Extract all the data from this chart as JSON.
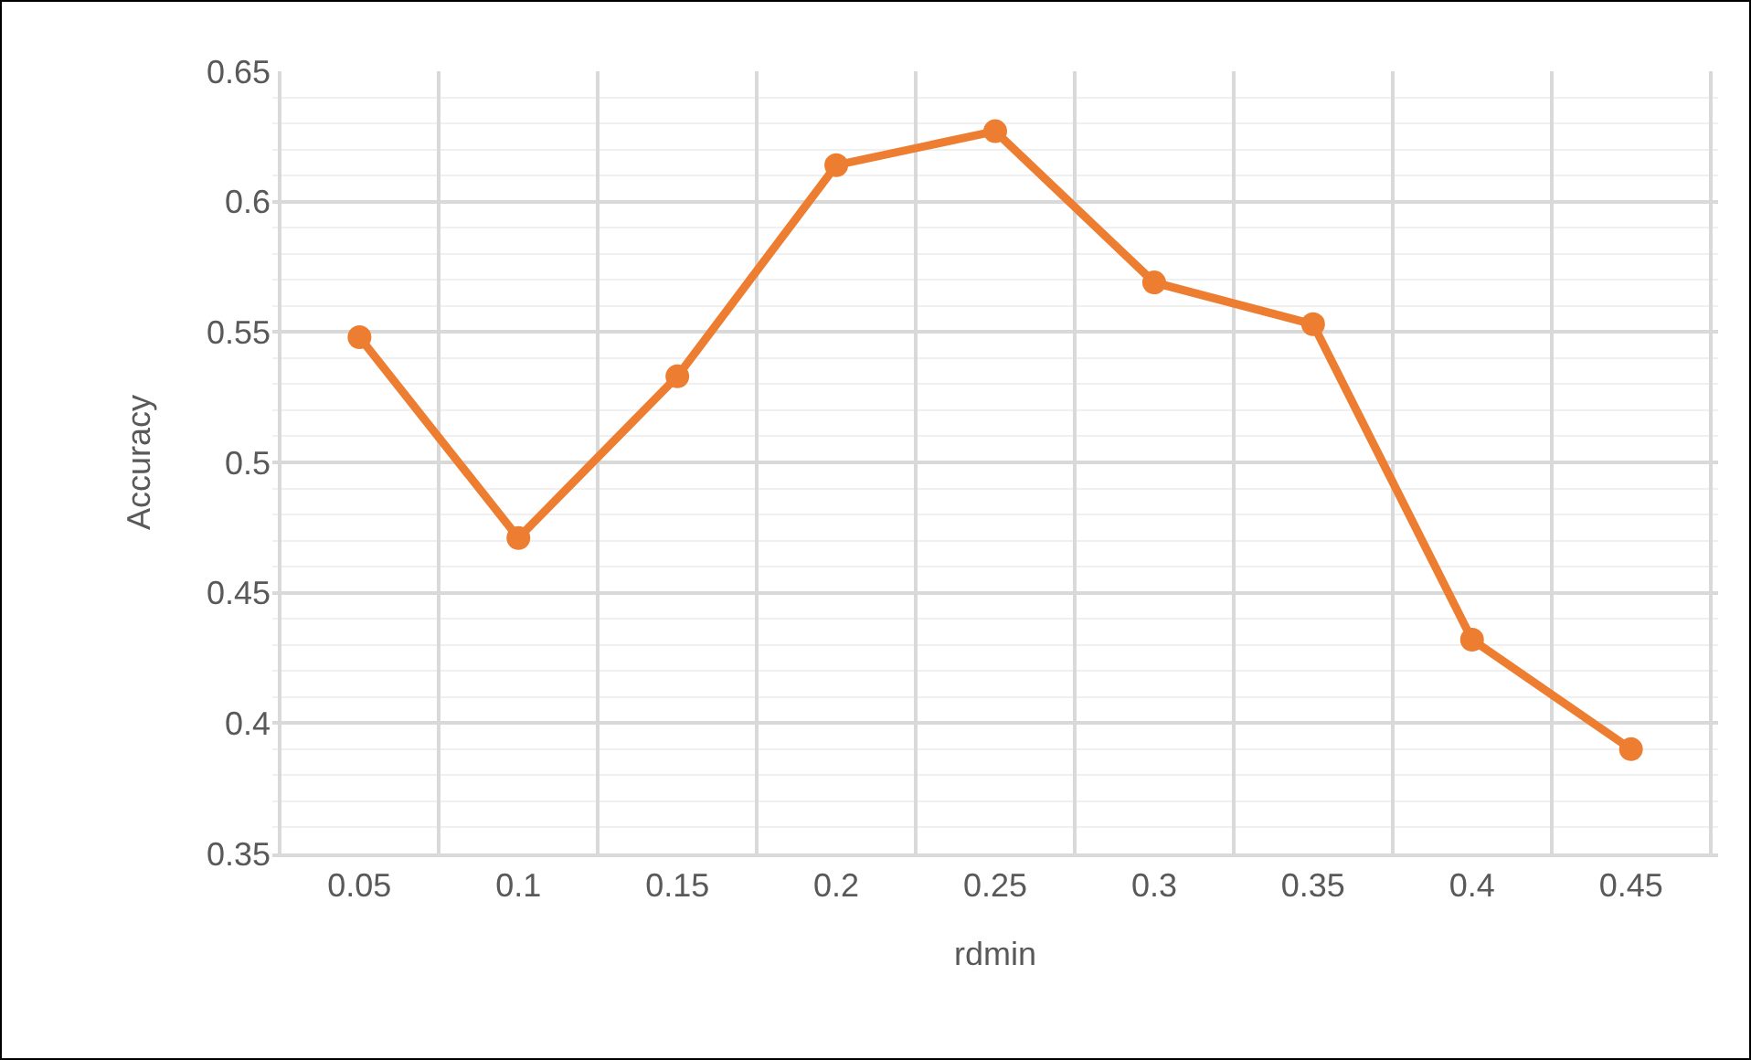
{
  "chart_data": {
    "type": "line",
    "xlabel": "rdmin",
    "ylabel": "Accuracy",
    "categories": [
      "0.05",
      "0.1",
      "0.15",
      "0.2",
      "0.25",
      "0.3",
      "0.35",
      "0.4",
      "0.45"
    ],
    "series": [
      {
        "color": "#ed7d31",
        "values": [
          0.548,
          0.471,
          0.533,
          0.614,
          0.627,
          0.569,
          0.553,
          0.432,
          0.39
        ]
      }
    ],
    "ylim": [
      0.35,
      0.65
    ],
    "yticks": [
      0.35,
      0.4,
      0.45,
      0.5,
      0.55,
      0.6,
      0.65
    ],
    "grid": true,
    "marker": "circle",
    "line_style": "solid",
    "legend": false
  }
}
